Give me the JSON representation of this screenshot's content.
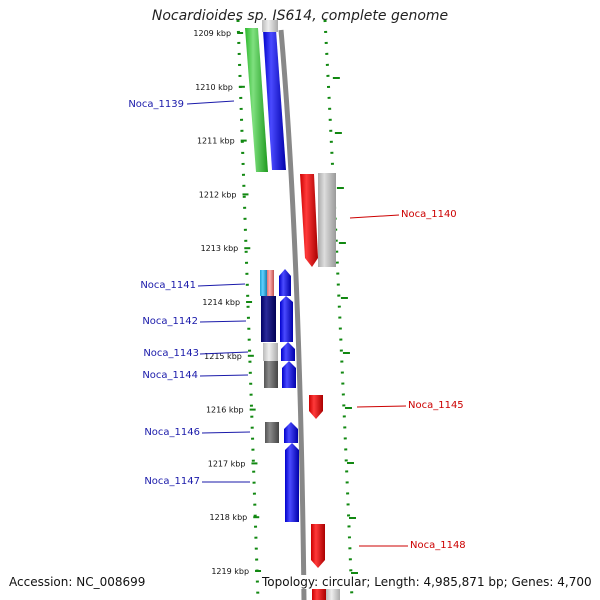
{
  "title": "Nocardioides sp. JS614, complete genome",
  "footer": {
    "accession": "Accession: NC_008699",
    "summary": "Topology: circular; Length: 4,985,871 bp; Genes: 4,700"
  },
  "scale": {
    "ticks": [
      "1209 kbp",
      "1210 kbp",
      "1211 kbp",
      "1212 kbp",
      "1213 kbp",
      "1214 kbp",
      "1215 kbp",
      "1216 kbp",
      "1217 kbp",
      "1218 kbp",
      "1219 kbp"
    ]
  },
  "colors": {
    "minus_label": "#1a1aaa",
    "plus_label": "#cc0000",
    "scale_dots": "#118811",
    "backbone": "#888888"
  },
  "genes_minus": [
    {
      "label": "Noca_1139"
    },
    {
      "label": "Noca_1141"
    },
    {
      "label": "Noca_1142"
    },
    {
      "label": "Noca_1143"
    },
    {
      "label": "Noca_1144"
    },
    {
      "label": "Noca_1146"
    },
    {
      "label": "Noca_1147"
    }
  ],
  "genes_plus": [
    {
      "label": "Noca_1140"
    },
    {
      "label": "Noca_1145"
    },
    {
      "label": "Noca_1148"
    }
  ]
}
